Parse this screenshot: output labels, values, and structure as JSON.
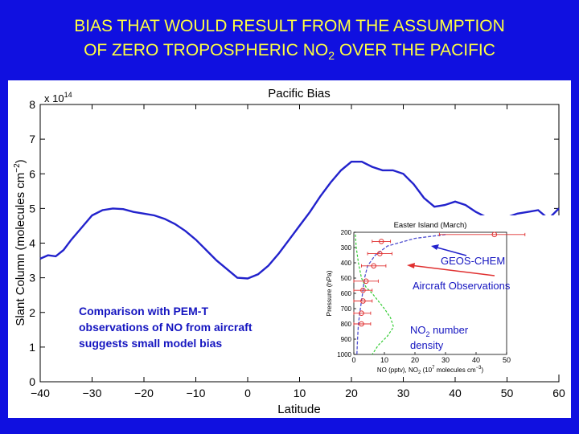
{
  "slide": {
    "title_line1": "BIAS THAT WOULD RESULT FROM THE ASSUMPTION",
    "title_line2_pre": "OF ZERO TROPOSPHERIC NO",
    "title_line2_sub": "2",
    "title_line2_post": " OVER THE PACIFIC"
  },
  "annotations": {
    "comparison_line1": "Comparison with PEM-T",
    "comparison_line2": "observations of NO from aircraft",
    "comparison_line3": "suggests small model bias",
    "geoschem_label": "GEOS-CHEM",
    "aircraft_label": "Aircraft Observations",
    "no2_line1_pre": "NO",
    "no2_line1_sub": "2",
    "no2_line1_post": " number",
    "no2_line2": "density"
  },
  "colors": {
    "background": "#1010e0",
    "title": "#ffff40",
    "main_line": "#2222cc",
    "annotation_text": "#1515c0",
    "obs_red": "#e03030",
    "no2_green": "#33cc33",
    "model_dash": "#5050d0"
  },
  "chart_data": [
    {
      "type": "line",
      "title": "Pacific Bias",
      "xlabel": "Latitude",
      "ylabel": "Slant Column (molecules cm⁻²)",
      "ylabel_pre": "Slant Column (molecules cm",
      "ylabel_sup": "−2",
      "ylabel_post": ")",
      "y_scale_label": "x 10",
      "y_scale_exp": "14",
      "xlim": [
        -40,
        60
      ],
      "ylim": [
        0,
        8
      ],
      "x_ticks": [
        -40,
        -30,
        -20,
        -10,
        0,
        10,
        20,
        30,
        40,
        50,
        60
      ],
      "x_tick_labels": [
        "−40",
        "−30",
        "−20",
        "−10",
        "0",
        "10",
        "20",
        "30",
        "40",
        "50",
        "60"
      ],
      "y_ticks": [
        0,
        1,
        2,
        3,
        4,
        5,
        6,
        7,
        8
      ],
      "y_tick_labels": [
        "0",
        "1",
        "2",
        "3",
        "4",
        "5",
        "6",
        "7",
        "8"
      ],
      "series": [
        {
          "x": [
            -40,
            -38.5,
            -37,
            -35.5,
            -34,
            -32,
            -30,
            -28,
            -26,
            -24,
            -22,
            -20,
            -18,
            -16,
            -14,
            -12,
            -10,
            -8,
            -6,
            -4,
            -2,
            0,
            2,
            4,
            6,
            8,
            10,
            12,
            14,
            16,
            18,
            20,
            22,
            24,
            26,
            28,
            30,
            32,
            34,
            36,
            38,
            40,
            42,
            44,
            46,
            48,
            50,
            52,
            54,
            56,
            58,
            60
          ],
          "y": [
            3.55,
            3.65,
            3.62,
            3.8,
            4.1,
            4.45,
            4.8,
            4.95,
            5.0,
            4.98,
            4.9,
            4.85,
            4.8,
            4.7,
            4.55,
            4.35,
            4.1,
            3.8,
            3.5,
            3.25,
            3.0,
            2.98,
            3.1,
            3.35,
            3.7,
            4.1,
            4.5,
            4.9,
            5.35,
            5.75,
            6.1,
            6.35,
            6.35,
            6.2,
            6.1,
            6.1,
            6.0,
            5.7,
            5.3,
            5.05,
            5.1,
            5.2,
            5.1,
            4.9,
            4.75,
            4.7,
            4.75,
            4.85,
            4.9,
            4.95,
            4.7,
            5.0
          ]
        }
      ]
    },
    {
      "type": "line",
      "title": "Easter Island (March)",
      "xlabel_pre": "NO (pptv), NO",
      "xlabel_sub": "2",
      "xlabel_mid": " (10",
      "xlabel_sup": "7",
      "xlabel_post": " molecules cm",
      "xlabel_sup2": "−3",
      "xlabel_end": ")",
      "ylabel": "Pressure (hPa)",
      "xlim": [
        0,
        50
      ],
      "ylim": [
        1000,
        200
      ],
      "x_ticks": [
        0,
        10,
        20,
        30,
        40,
        50
      ],
      "x_tick_labels": [
        "0",
        "10",
        "20",
        "30",
        "40",
        "50"
      ],
      "y_ticks": [
        200,
        300,
        400,
        500,
        600,
        700,
        800,
        900,
        1000
      ],
      "y_tick_labels": [
        "200",
        "300",
        "400",
        "500",
        "600",
        "700",
        "800",
        "900",
        "1000"
      ],
      "series": [
        {
          "kind": "observations",
          "x": [
            46,
            9,
            8.5,
            6.5,
            4,
            3,
            3,
            2.5,
            2.5
          ],
          "y": [
            215,
            260,
            340,
            420,
            520,
            580,
            650,
            730,
            800
          ],
          "xerr": [
            18,
            3,
            4,
            4,
            4,
            3,
            3,
            3,
            3
          ]
        },
        {
          "kind": "model",
          "x": [
            30,
            20,
            11,
            7,
            4.5,
            3.5,
            3,
            2.5,
            2,
            1.5,
            1.2,
            1
          ],
          "y": [
            215,
            240,
            290,
            350,
            420,
            500,
            580,
            650,
            720,
            800,
            900,
            1000
          ]
        },
        {
          "kind": "no2_number_density",
          "x": [
            0.5,
            0.8,
            1.5,
            2.5,
            4,
            6,
            8,
            10,
            12,
            13,
            11,
            8,
            6
          ],
          "y": [
            215,
            300,
            400,
            500,
            560,
            600,
            650,
            700,
            760,
            820,
            880,
            940,
            1000
          ]
        }
      ]
    }
  ]
}
